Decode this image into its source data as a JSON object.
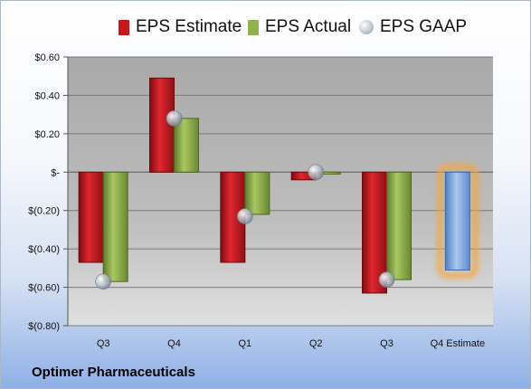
{
  "legend": {
    "estimate": "EPS Estimate",
    "actual": "EPS Actual",
    "gaap": "EPS GAAP"
  },
  "company": "Optimer Pharmaceuticals",
  "colors": {
    "estimate": "#c8161d",
    "actual": "#8fb24a",
    "gaap": "#c0c4cc",
    "forecast": "#79a6dc",
    "forecast_glow": "#f4a640",
    "plot_bg": "#b8b8b8"
  },
  "chart_data": {
    "type": "bar",
    "categories": [
      "Q3",
      "Q4",
      "Q1",
      "Q2",
      "Q3",
      "Q4 Estimate"
    ],
    "series": [
      {
        "name": "EPS Estimate",
        "values": [
          -0.47,
          0.49,
          -0.47,
          -0.04,
          -0.63,
          null
        ]
      },
      {
        "name": "EPS Actual",
        "values": [
          -0.57,
          0.28,
          -0.22,
          -0.01,
          -0.56,
          null
        ]
      },
      {
        "name": "EPS GAAP",
        "values": [
          -0.57,
          0.28,
          -0.23,
          0.0,
          -0.56,
          null
        ]
      },
      {
        "name": "Q4 Estimate",
        "values": [
          null,
          null,
          null,
          null,
          null,
          -0.51
        ]
      }
    ],
    "ylim": [
      -0.8,
      0.6
    ],
    "yticks": [
      0.6,
      0.4,
      0.2,
      0,
      -0.2,
      -0.4,
      -0.6,
      -0.8
    ],
    "ytick_labels": [
      "$0.60",
      "$0.40",
      "$0.20",
      "$-",
      "$(0.20)",
      "$(0.40)",
      "$(0.60)",
      "$(0.80)"
    ],
    "grid": true,
    "legend_position": "top"
  }
}
